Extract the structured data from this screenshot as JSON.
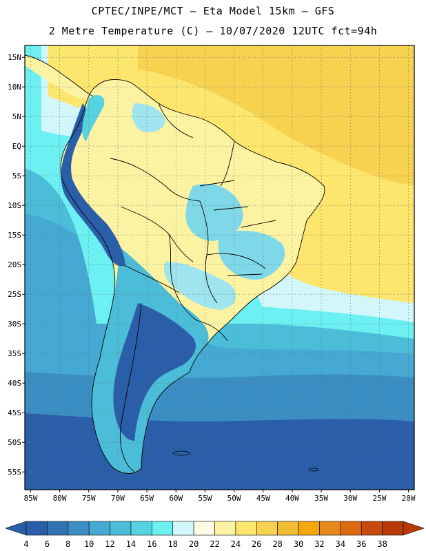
{
  "header": {
    "line1": "CPTEC/INPE/MCT –  Eta Model 15km – GFS",
    "line2": "2 Metre Temperature (C) – 10/07/2020 12UTC fct=94h"
  },
  "map": {
    "lon_range": [
      -86,
      -19
    ],
    "lat_range": [
      -58,
      17
    ],
    "lat_labels": [
      "15N",
      "10N",
      "5N",
      "EQ",
      "5S",
      "10S",
      "15S",
      "20S",
      "25S",
      "30S",
      "35S",
      "40S",
      "45S",
      "50S",
      "55S"
    ],
    "lat_values": [
      15,
      10,
      5,
      0,
      -5,
      -10,
      -15,
      -20,
      -25,
      -30,
      -35,
      -40,
      -45,
      -50,
      -55
    ],
    "lon_labels": [
      "85W",
      "80W",
      "75W",
      "70W",
      "65W",
      "60W",
      "55W",
      "50W",
      "45W",
      "40W",
      "35W",
      "30W",
      "25W",
      "20W"
    ],
    "lon_values": [
      -85,
      -80,
      -75,
      -70,
      -65,
      -60,
      -55,
      -50,
      -45,
      -40,
      -35,
      -30,
      -25,
      -20
    ],
    "grid": true
  },
  "colorbar": {
    "levels": [
      "4",
      "6",
      "8",
      "10",
      "12",
      "14",
      "16",
      "18",
      "20",
      "22",
      "24",
      "26",
      "28",
      "30",
      "32",
      "34",
      "36",
      "38"
    ],
    "colors": [
      "#2a5ea8",
      "#3172b2",
      "#3a8ec4",
      "#45a9d4",
      "#4cbdd9",
      "#56d3e0",
      "#6cf0f2",
      "#d2f7fb",
      "#fff9e6",
      "#fbf3a2",
      "#fde66e",
      "#f6d250",
      "#f0bd32",
      "#f5a80c",
      "#e58a1a",
      "#dc6a10",
      "#c84a0c",
      "#b83a08"
    ]
  },
  "field_colors": {
    "ocean_cold": "#2a5ea8",
    "ocean_cool": "#3a8ec4",
    "ocean_mid": "#4cbdd9",
    "ocean_mild": "#6cf0f2",
    "ocean_warm": "#f6d250",
    "land_warm": "#fbf3a2",
    "land_cool": "#7fd8e8",
    "land_mountain": "#2a5ea8",
    "border": "#000000"
  }
}
